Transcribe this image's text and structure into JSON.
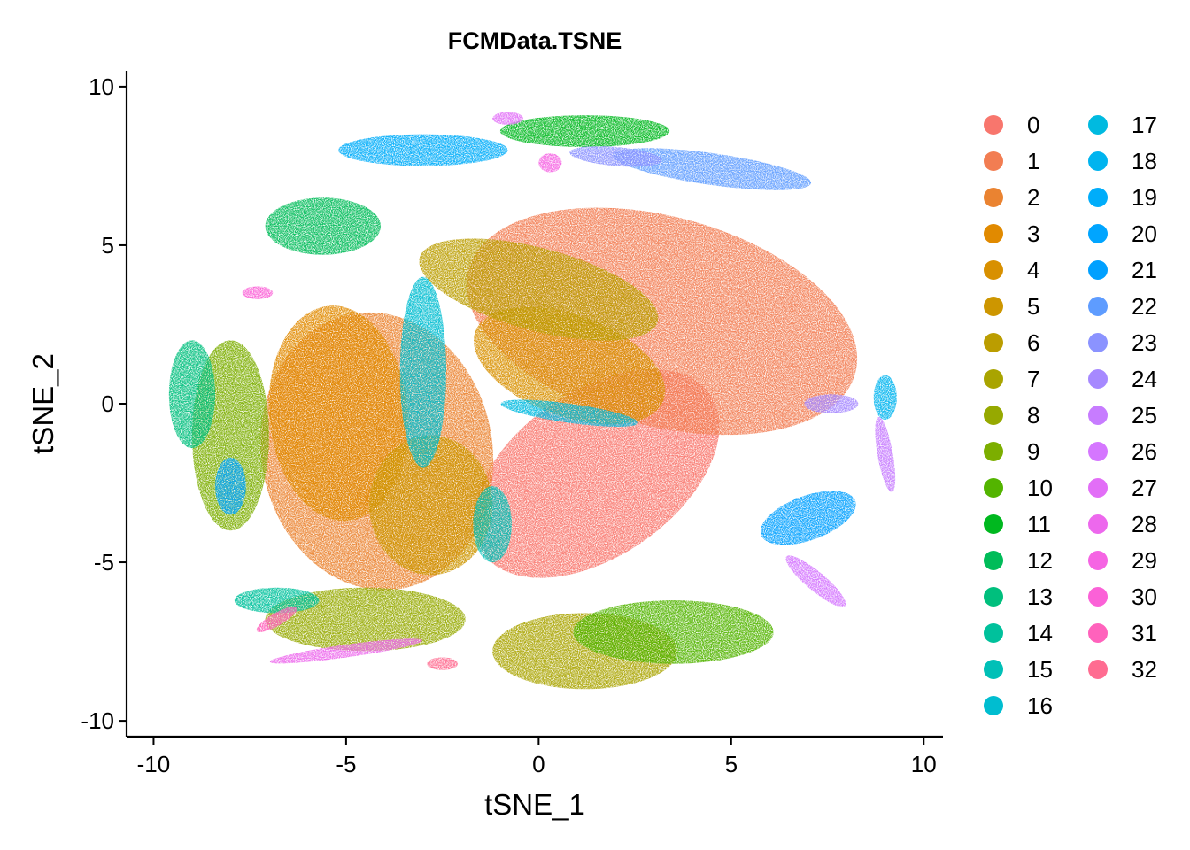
{
  "chart_data": {
    "type": "scatter",
    "title": "FCMData.TSNE",
    "xlabel": "tSNE_1",
    "ylabel": "tSNE_2",
    "xlim": [
      -10.7,
      10.5
    ],
    "ylim": [
      -10.5,
      10.5
    ],
    "x_ticks": [
      -10,
      -5,
      0,
      5,
      10
    ],
    "x_tick_labels": [
      "-10",
      "-5",
      "0",
      "5",
      "10"
    ],
    "y_ticks": [
      -10,
      -5,
      0,
      5,
      10
    ],
    "y_tick_labels": [
      "-10",
      "-5",
      "0",
      "5",
      "10"
    ],
    "grid": false,
    "legend_position": "right",
    "legend_columns": 2,
    "point_blob_ellipses_note_free": true,
    "clusters": [
      {
        "name": "0",
        "color": "#F8766D",
        "cx": 1.5,
        "cy": -2.2,
        "rx": 3.6,
        "ry": 2.6,
        "rot": 35
      },
      {
        "name": "1",
        "color": "#F27D52",
        "cx": 3.2,
        "cy": 2.6,
        "rx": 5.2,
        "ry": 3.3,
        "rot": -15
      },
      {
        "name": "2",
        "color": "#EA8331",
        "cx": -4.2,
        "cy": -1.5,
        "rx": 3.0,
        "ry": 4.4,
        "rot": 10
      },
      {
        "name": "3",
        "color": "#E18A00",
        "cx": -5.2,
        "cy": -0.3,
        "rx": 1.8,
        "ry": 3.4,
        "rot": 5
      },
      {
        "name": "4",
        "color": "#D89000",
        "cx": 0.8,
        "cy": 1.2,
        "rx": 2.6,
        "ry": 1.6,
        "rot": -20
      },
      {
        "name": "5",
        "color": "#CD9600",
        "cx": -2.8,
        "cy": -3.2,
        "rx": 1.6,
        "ry": 2.2,
        "rot": 0
      },
      {
        "name": "6",
        "color": "#BB9D00",
        "cx": 0.0,
        "cy": 3.6,
        "rx": 3.2,
        "ry": 1.3,
        "rot": -15
      },
      {
        "name": "7",
        "color": "#A9A400",
        "cx": 1.2,
        "cy": -7.8,
        "rx": 2.4,
        "ry": 1.2,
        "rot": 0
      },
      {
        "name": "8",
        "color": "#96A900",
        "cx": -4.5,
        "cy": -6.8,
        "rx": 2.6,
        "ry": 1.0,
        "rot": 0
      },
      {
        "name": "9",
        "color": "#7CAE00",
        "cx": -8.0,
        "cy": -1.0,
        "rx": 1.0,
        "ry": 3.0,
        "rot": 0
      },
      {
        "name": "10",
        "color": "#53B400",
        "cx": 3.5,
        "cy": -7.2,
        "rx": 2.6,
        "ry": 1.0,
        "rot": 0
      },
      {
        "name": "11",
        "color": "#00B81F",
        "cx": 1.2,
        "cy": 8.6,
        "rx": 2.2,
        "ry": 0.5,
        "rot": 0
      },
      {
        "name": "12",
        "color": "#00BC59",
        "cx": -5.6,
        "cy": 5.6,
        "rx": 1.5,
        "ry": 0.9,
        "rot": 0
      },
      {
        "name": "13",
        "color": "#00BF7D",
        "cx": -9.0,
        "cy": 0.3,
        "rx": 0.6,
        "ry": 1.7,
        "rot": 0
      },
      {
        "name": "14",
        "color": "#00C19C",
        "cx": -6.8,
        "cy": -6.2,
        "rx": 1.1,
        "ry": 0.4,
        "rot": 0
      },
      {
        "name": "15",
        "color": "#00C0B7",
        "cx": -1.2,
        "cy": -3.8,
        "rx": 0.5,
        "ry": 1.2,
        "rot": 0
      },
      {
        "name": "16",
        "color": "#00BDD0",
        "cx": -3.0,
        "cy": 1.0,
        "rx": 0.6,
        "ry": 3.0,
        "rot": 0
      },
      {
        "name": "17",
        "color": "#00BAE0",
        "cx": 0.8,
        "cy": -0.3,
        "rx": 1.8,
        "ry": 0.3,
        "rot": -8
      },
      {
        "name": "18",
        "color": "#00B4EF",
        "cx": 9.0,
        "cy": 0.2,
        "rx": 0.3,
        "ry": 0.7,
        "rot": 0
      },
      {
        "name": "19",
        "color": "#00ADFA",
        "cx": -3.0,
        "cy": 8.0,
        "rx": 2.2,
        "ry": 0.5,
        "rot": 0
      },
      {
        "name": "20",
        "color": "#00A5FF",
        "cx": -8.0,
        "cy": -2.6,
        "rx": 0.4,
        "ry": 0.9,
        "rot": 0
      },
      {
        "name": "21",
        "color": "#00A0FF",
        "cx": 7.0,
        "cy": -3.6,
        "rx": 1.3,
        "ry": 0.7,
        "rot": 20
      },
      {
        "name": "22",
        "color": "#5E9CFF",
        "cx": 4.5,
        "cy": 7.4,
        "rx": 2.6,
        "ry": 0.5,
        "rot": -8
      },
      {
        "name": "23",
        "color": "#8B93FF",
        "cx": 2.0,
        "cy": 7.8,
        "rx": 1.2,
        "ry": 0.3,
        "rot": -5
      },
      {
        "name": "24",
        "color": "#A689FF",
        "cx": 7.6,
        "cy": 0.0,
        "rx": 0.7,
        "ry": 0.3,
        "rot": 0
      },
      {
        "name": "25",
        "color": "#C77CFF",
        "cx": 9.0,
        "cy": -1.6,
        "rx": 0.2,
        "ry": 1.2,
        "rot": 10
      },
      {
        "name": "26",
        "color": "#D576FF",
        "cx": 7.2,
        "cy": -5.6,
        "rx": 1.0,
        "ry": 0.3,
        "rot": -40
      },
      {
        "name": "27",
        "color": "#E26EF7",
        "cx": -0.8,
        "cy": 9.0,
        "rx": 0.4,
        "ry": 0.2,
        "rot": 0
      },
      {
        "name": "28",
        "color": "#ED68ED",
        "cx": -5.0,
        "cy": -7.8,
        "rx": 2.0,
        "ry": 0.2,
        "rot": 8
      },
      {
        "name": "29",
        "color": "#F564E3",
        "cx": 0.3,
        "cy": 7.6,
        "rx": 0.3,
        "ry": 0.3,
        "rot": 0
      },
      {
        "name": "30",
        "color": "#FB61D7",
        "cx": -7.3,
        "cy": 3.5,
        "rx": 0.4,
        "ry": 0.2,
        "rot": 0
      },
      {
        "name": "31",
        "color": "#FF62BC",
        "cx": -6.8,
        "cy": -6.8,
        "rx": 0.6,
        "ry": 0.2,
        "rot": 30
      },
      {
        "name": "32",
        "color": "#FF6C91",
        "cx": -2.5,
        "cy": -8.2,
        "rx": 0.4,
        "ry": 0.2,
        "rot": 0
      }
    ]
  }
}
